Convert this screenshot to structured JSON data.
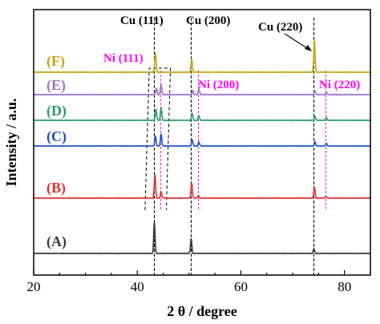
{
  "chart_data": {
    "type": "line",
    "title": "",
    "xlabel": "2 θ / degree",
    "ylabel": "Intensity / a.u.",
    "xlim": [
      20,
      85
    ],
    "xticks": [
      20,
      40,
      60,
      80
    ],
    "grid": false,
    "series": [
      {
        "name": "(A)",
        "color": "#3a3a3a",
        "peaks": [
          [
            43.3,
            40
          ],
          [
            50.4,
            19
          ],
          [
            74.1,
            6
          ]
        ]
      },
      {
        "name": "(B)",
        "color": "#e03030",
        "peaks": [
          [
            43.4,
            30
          ],
          [
            44.6,
            8
          ],
          [
            50.5,
            19
          ],
          [
            51.8,
            3
          ],
          [
            74.2,
            13
          ],
          [
            76.4,
            2
          ]
        ]
      },
      {
        "name": "(C)",
        "color": "#1f4fc8",
        "peaks": [
          [
            43.5,
            12
          ],
          [
            44.6,
            15
          ],
          [
            50.6,
            8
          ],
          [
            51.9,
            5
          ],
          [
            74.3,
            5
          ],
          [
            76.5,
            3
          ]
        ]
      },
      {
        "name": "(D)",
        "color": "#2a9a6a",
        "peaks": [
          [
            43.6,
            14
          ],
          [
            44.6,
            16
          ],
          [
            50.6,
            9
          ],
          [
            51.9,
            6
          ],
          [
            74.3,
            5
          ],
          [
            76.5,
            3
          ]
        ]
      },
      {
        "name": "(E)",
        "color": "#9a70c8",
        "peaks": [
          [
            43.7,
            8
          ],
          [
            44.6,
            12
          ],
          [
            50.7,
            5
          ],
          [
            51.9,
            7
          ],
          [
            74.3,
            5
          ],
          [
            76.5,
            3
          ]
        ]
      },
      {
        "name": "(F)",
        "color": "#c8a010",
        "peaks": [
          [
            43.5,
            25
          ],
          [
            50.5,
            16
          ],
          [
            74.2,
            40
          ]
        ]
      }
    ],
    "reference_lines": [
      {
        "x": 43.3,
        "color": "#000000"
      },
      {
        "x": 50.4,
        "color": "#000000"
      },
      {
        "x": 74.1,
        "color": "#000000"
      },
      {
        "x": 44.5,
        "color": "#ff00ff"
      },
      {
        "x": 51.8,
        "color": "#ff00ff"
      },
      {
        "x": 76.4,
        "color": "#ff00ff"
      }
    ],
    "annotations": [
      {
        "text": "Cu (111)",
        "color": "#000000"
      },
      {
        "text": "Cu (200)",
        "color": "#000000"
      },
      {
        "text": "Cu (220)",
        "color": "#000000"
      },
      {
        "text": "Ni (111)",
        "color": "#ff00ff"
      },
      {
        "text": "Ni (200)",
        "color": "#ff00ff"
      },
      {
        "text": "Ni (220)",
        "color": "#ff00ff"
      }
    ]
  }
}
